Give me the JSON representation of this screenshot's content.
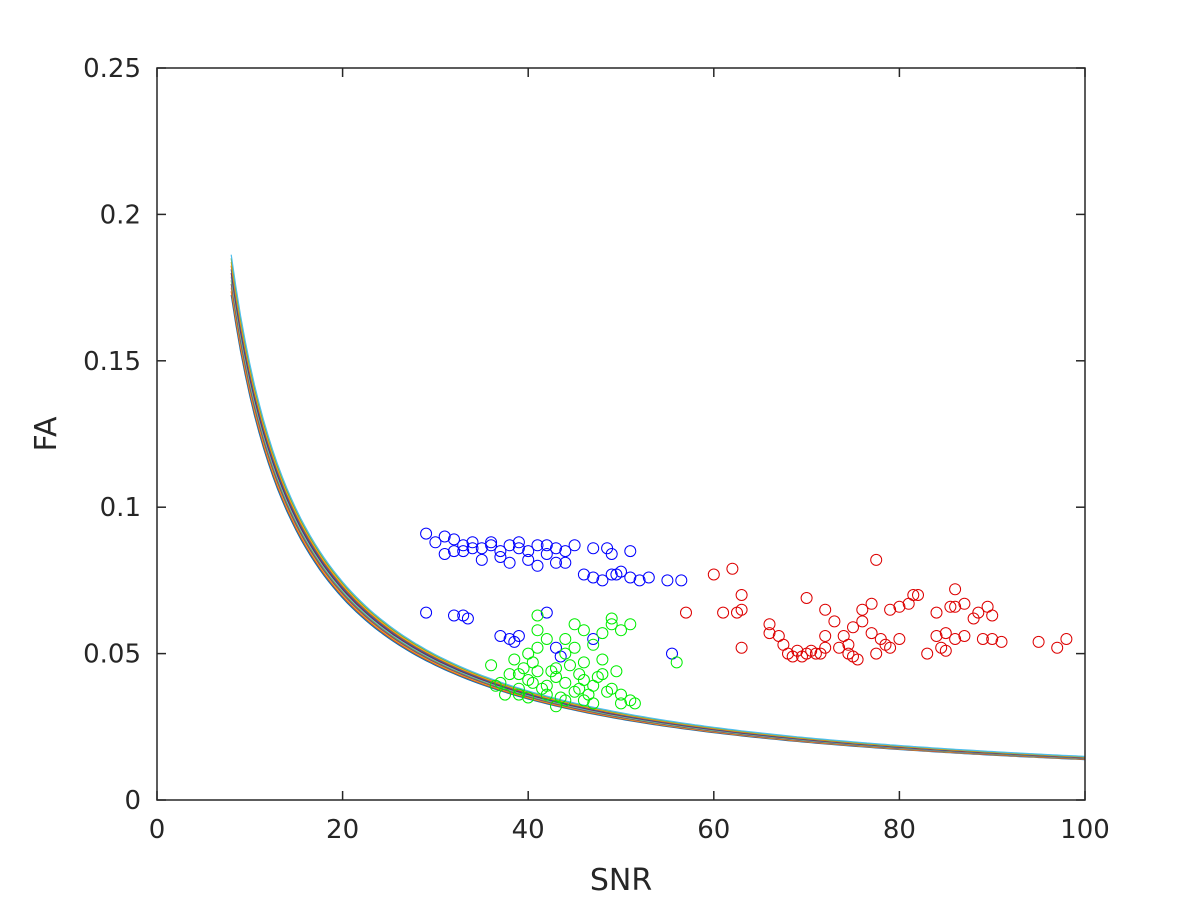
{
  "chart_data": {
    "type": "scatter",
    "title": "",
    "xlabel": "SNR",
    "ylabel": "FA",
    "xlim": [
      0,
      100
    ],
    "ylim": [
      0,
      0.25
    ],
    "xticks": [
      0,
      20,
      40,
      60,
      80,
      100
    ],
    "yticks": [
      0,
      0.05,
      0.1,
      0.15,
      0.2,
      0.25
    ],
    "ytick_labels": [
      "0",
      "0.05",
      "0.1",
      "0.15",
      "0.2",
      "0.25"
    ],
    "grid": false,
    "curves": {
      "x_start": 8,
      "x_end": 100,
      "reference_model": "FA ≈ k / SNR",
      "k_values": [
        1.38,
        1.39,
        1.4,
        1.41,
        1.42,
        1.43,
        1.44,
        1.45,
        1.46,
        1.47,
        1.48,
        1.49
      ],
      "colors": [
        "#0072BD",
        "#D95319",
        "#EDB120",
        "#7E2F8E",
        "#77AC30",
        "#4DBEEE",
        "#A2142F",
        "#0072BD",
        "#D95319",
        "#EDB120",
        "#77AC30",
        "#4DBEEE"
      ]
    },
    "series": [
      {
        "color": "#0000ff",
        "points": [
          [
            29,
            0.091
          ],
          [
            30,
            0.088
          ],
          [
            31,
            0.09
          ],
          [
            32,
            0.089
          ],
          [
            33,
            0.087
          ],
          [
            34,
            0.088
          ],
          [
            35,
            0.086
          ],
          [
            36,
            0.088
          ],
          [
            37,
            0.085
          ],
          [
            38,
            0.087
          ],
          [
            39,
            0.086
          ],
          [
            40,
            0.085
          ],
          [
            41,
            0.087
          ],
          [
            42,
            0.084
          ],
          [
            43,
            0.086
          ],
          [
            44,
            0.085
          ],
          [
            45,
            0.087
          ],
          [
            31,
            0.084
          ],
          [
            33,
            0.085
          ],
          [
            35,
            0.082
          ],
          [
            37,
            0.083
          ],
          [
            38,
            0.081
          ],
          [
            40,
            0.082
          ],
          [
            41,
            0.08
          ],
          [
            43,
            0.081
          ],
          [
            36,
            0.087
          ],
          [
            39,
            0.088
          ],
          [
            34,
            0.086
          ],
          [
            32,
            0.085
          ],
          [
            42,
            0.087
          ],
          [
            47,
            0.086
          ],
          [
            48.5,
            0.086
          ],
          [
            49,
            0.084
          ],
          [
            51,
            0.085
          ],
          [
            44,
            0.081
          ],
          [
            47,
            0.076
          ],
          [
            48,
            0.075
          ],
          [
            49,
            0.077
          ],
          [
            50,
            0.078
          ],
          [
            51,
            0.076
          ],
          [
            52,
            0.075
          ],
          [
            53,
            0.076
          ],
          [
            55,
            0.075
          ],
          [
            56.5,
            0.075
          ],
          [
            46,
            0.077
          ],
          [
            49.5,
            0.077
          ],
          [
            29,
            0.064
          ],
          [
            32,
            0.063
          ],
          [
            33,
            0.063
          ],
          [
            33.5,
            0.062
          ],
          [
            37,
            0.056
          ],
          [
            38,
            0.055
          ],
          [
            38.5,
            0.054
          ],
          [
            39,
            0.056
          ],
          [
            42,
            0.064
          ],
          [
            43,
            0.052
          ],
          [
            43.5,
            0.049
          ],
          [
            47,
            0.055
          ],
          [
            55.5,
            0.05
          ]
        ]
      },
      {
        "color": "#00ee00",
        "points": [
          [
            36,
            0.046
          ],
          [
            37,
            0.04
          ],
          [
            38,
            0.043
          ],
          [
            39,
            0.038
          ],
          [
            40,
            0.041
          ],
          [
            41,
            0.044
          ],
          [
            42,
            0.039
          ],
          [
            43,
            0.042
          ],
          [
            44,
            0.04
          ],
          [
            45,
            0.037
          ],
          [
            46,
            0.041
          ],
          [
            47,
            0.039
          ],
          [
            48,
            0.043
          ],
          [
            49,
            0.038
          ],
          [
            50,
            0.036
          ],
          [
            37.5,
            0.036
          ],
          [
            38.5,
            0.048
          ],
          [
            39.5,
            0.045
          ],
          [
            40.5,
            0.047
          ],
          [
            41.5,
            0.038
          ],
          [
            42.5,
            0.044
          ],
          [
            43.5,
            0.035
          ],
          [
            44.5,
            0.046
          ],
          [
            45.5,
            0.043
          ],
          [
            46.5,
            0.036
          ],
          [
            47.5,
            0.042
          ],
          [
            48.5,
            0.037
          ],
          [
            49.5,
            0.044
          ],
          [
            36.5,
            0.039
          ],
          [
            40,
            0.05
          ],
          [
            41,
            0.052
          ],
          [
            42,
            0.055
          ],
          [
            44,
            0.055
          ],
          [
            45,
            0.052
          ],
          [
            46,
            0.058
          ],
          [
            47,
            0.053
          ],
          [
            48,
            0.057
          ],
          [
            49,
            0.06
          ],
          [
            50,
            0.058
          ],
          [
            41,
            0.063
          ],
          [
            45,
            0.06
          ],
          [
            49,
            0.062
          ],
          [
            51,
            0.06
          ],
          [
            51,
            0.034
          ],
          [
            51.5,
            0.033
          ],
          [
            50,
            0.033
          ],
          [
            43,
            0.032
          ],
          [
            44,
            0.034
          ],
          [
            40,
            0.035
          ],
          [
            39,
            0.036
          ],
          [
            42,
            0.036
          ],
          [
            46,
            0.034
          ],
          [
            47,
            0.033
          ],
          [
            45.5,
            0.038
          ],
          [
            40.5,
            0.04
          ],
          [
            43,
            0.045
          ],
          [
            39,
            0.043
          ],
          [
            56,
            0.047
          ],
          [
            41,
            0.058
          ],
          [
            44,
            0.05
          ],
          [
            46,
            0.047
          ],
          [
            48,
            0.048
          ]
        ]
      },
      {
        "color": "#dd0000",
        "points": [
          [
            57,
            0.064
          ],
          [
            60,
            0.077
          ],
          [
            61,
            0.064
          ],
          [
            62,
            0.079
          ],
          [
            62.5,
            0.064
          ],
          [
            63,
            0.07
          ],
          [
            63,
            0.065
          ],
          [
            63,
            0.052
          ],
          [
            66,
            0.06
          ],
          [
            66,
            0.057
          ],
          [
            67,
            0.056
          ],
          [
            67.5,
            0.053
          ],
          [
            68,
            0.05
          ],
          [
            68.5,
            0.049
          ],
          [
            69,
            0.051
          ],
          [
            69.5,
            0.049
          ],
          [
            70,
            0.05
          ],
          [
            70,
            0.069
          ],
          [
            70.5,
            0.051
          ],
          [
            71,
            0.05
          ],
          [
            71.5,
            0.05
          ],
          [
            72,
            0.052
          ],
          [
            72,
            0.056
          ],
          [
            72,
            0.065
          ],
          [
            73,
            0.061
          ],
          [
            73.5,
            0.052
          ],
          [
            74,
            0.056
          ],
          [
            74.5,
            0.053
          ],
          [
            74.5,
            0.05
          ],
          [
            75,
            0.049
          ],
          [
            75.5,
            0.048
          ],
          [
            75,
            0.059
          ],
          [
            76,
            0.061
          ],
          [
            76,
            0.065
          ],
          [
            77,
            0.067
          ],
          [
            77,
            0.057
          ],
          [
            77.5,
            0.05
          ],
          [
            77.5,
            0.082
          ],
          [
            78,
            0.055
          ],
          [
            78.5,
            0.053
          ],
          [
            79,
            0.065
          ],
          [
            79,
            0.052
          ],
          [
            80,
            0.055
          ],
          [
            80,
            0.066
          ],
          [
            81,
            0.067
          ],
          [
            81.5,
            0.07
          ],
          [
            82,
            0.07
          ],
          [
            83,
            0.05
          ],
          [
            84,
            0.064
          ],
          [
            84,
            0.056
          ],
          [
            84.5,
            0.052
          ],
          [
            85,
            0.057
          ],
          [
            85,
            0.051
          ],
          [
            85.5,
            0.066
          ],
          [
            86,
            0.072
          ],
          [
            86,
            0.066
          ],
          [
            86,
            0.055
          ],
          [
            87,
            0.067
          ],
          [
            87,
            0.056
          ],
          [
            88,
            0.062
          ],
          [
            88.5,
            0.064
          ],
          [
            89,
            0.055
          ],
          [
            89.5,
            0.066
          ],
          [
            90,
            0.055
          ],
          [
            90,
            0.063
          ],
          [
            91,
            0.054
          ],
          [
            95,
            0.054
          ],
          [
            97,
            0.052
          ],
          [
            98,
            0.055
          ]
        ]
      }
    ]
  }
}
